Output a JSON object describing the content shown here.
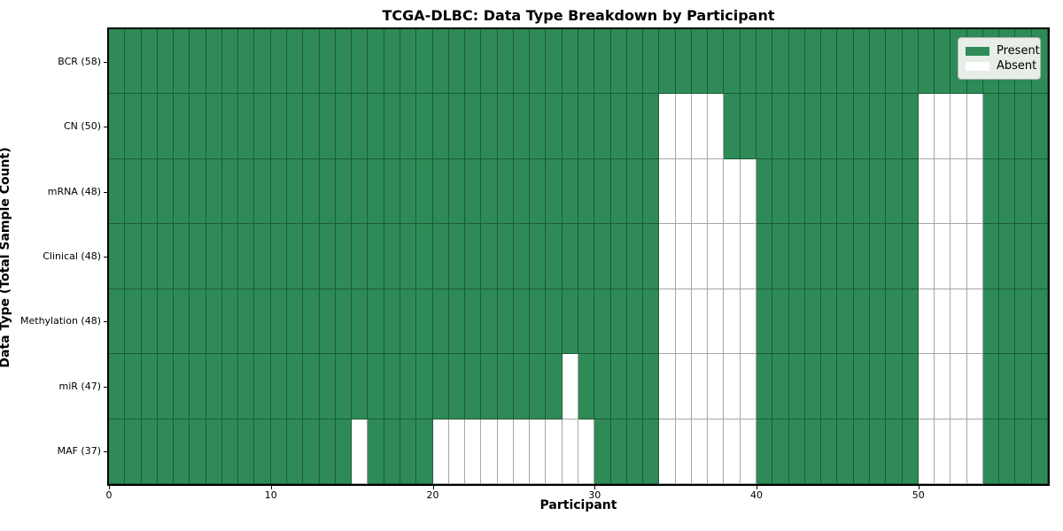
{
  "title": "TCGA-DLBC: Data Type Breakdown by Participant",
  "axes": {
    "x_label": "Participant",
    "y_label": "Data Type (Total Sample Count)",
    "x_tick_labels": [
      "0",
      "10",
      "20",
      "30",
      "40",
      "50"
    ],
    "x_tick_values": [
      0,
      10,
      20,
      30,
      40,
      50
    ]
  },
  "legend": {
    "items": [
      {
        "label": "Present",
        "color": "#2E8B57"
      },
      {
        "label": "Absent",
        "color": "#FFFFFF"
      }
    ]
  },
  "chart_data": {
    "type": "heatmap",
    "title": "TCGA-DLBC: Data Type Breakdown by Participant",
    "xlabel": "Participant",
    "ylabel": "Data Type (Total Sample Count)",
    "x_range": [
      0,
      58
    ],
    "n_participants": 58,
    "grid": true,
    "legend_position": "upper right",
    "colors": {
      "present": "#2E8B57",
      "absent": "#FFFFFF",
      "gridline": "rgba(0,0,0,0.35)"
    },
    "rows": [
      {
        "label": "BCR (58)",
        "data_type": "BCR",
        "total_samples": 58,
        "absent_participants": []
      },
      {
        "label": "CN (50)",
        "data_type": "CN",
        "total_samples": 50,
        "absent_participants": [
          34,
          35,
          36,
          37,
          50,
          51,
          52,
          53
        ]
      },
      {
        "label": "mRNA (48)",
        "data_type": "mRNA",
        "total_samples": 48,
        "absent_participants": [
          34,
          35,
          36,
          37,
          38,
          39,
          50,
          51,
          52,
          53
        ]
      },
      {
        "label": "Clinical (48)",
        "data_type": "Clinical",
        "total_samples": 48,
        "absent_participants": [
          34,
          35,
          36,
          37,
          38,
          39,
          50,
          51,
          52,
          53
        ]
      },
      {
        "label": "Methylation (48)",
        "data_type": "Methylation",
        "total_samples": 48,
        "absent_participants": [
          34,
          35,
          36,
          37,
          38,
          39,
          50,
          51,
          52,
          53
        ]
      },
      {
        "label": "miR (47)",
        "data_type": "miR",
        "total_samples": 47,
        "absent_participants": [
          28,
          34,
          35,
          36,
          37,
          38,
          39,
          50,
          51,
          52,
          53
        ]
      },
      {
        "label": "MAF (37)",
        "data_type": "MAF",
        "total_samples": 37,
        "absent_participants": [
          15,
          20,
          21,
          22,
          23,
          24,
          25,
          26,
          27,
          28,
          29,
          34,
          35,
          36,
          37,
          38,
          39,
          50,
          51,
          52,
          53
        ]
      }
    ]
  }
}
